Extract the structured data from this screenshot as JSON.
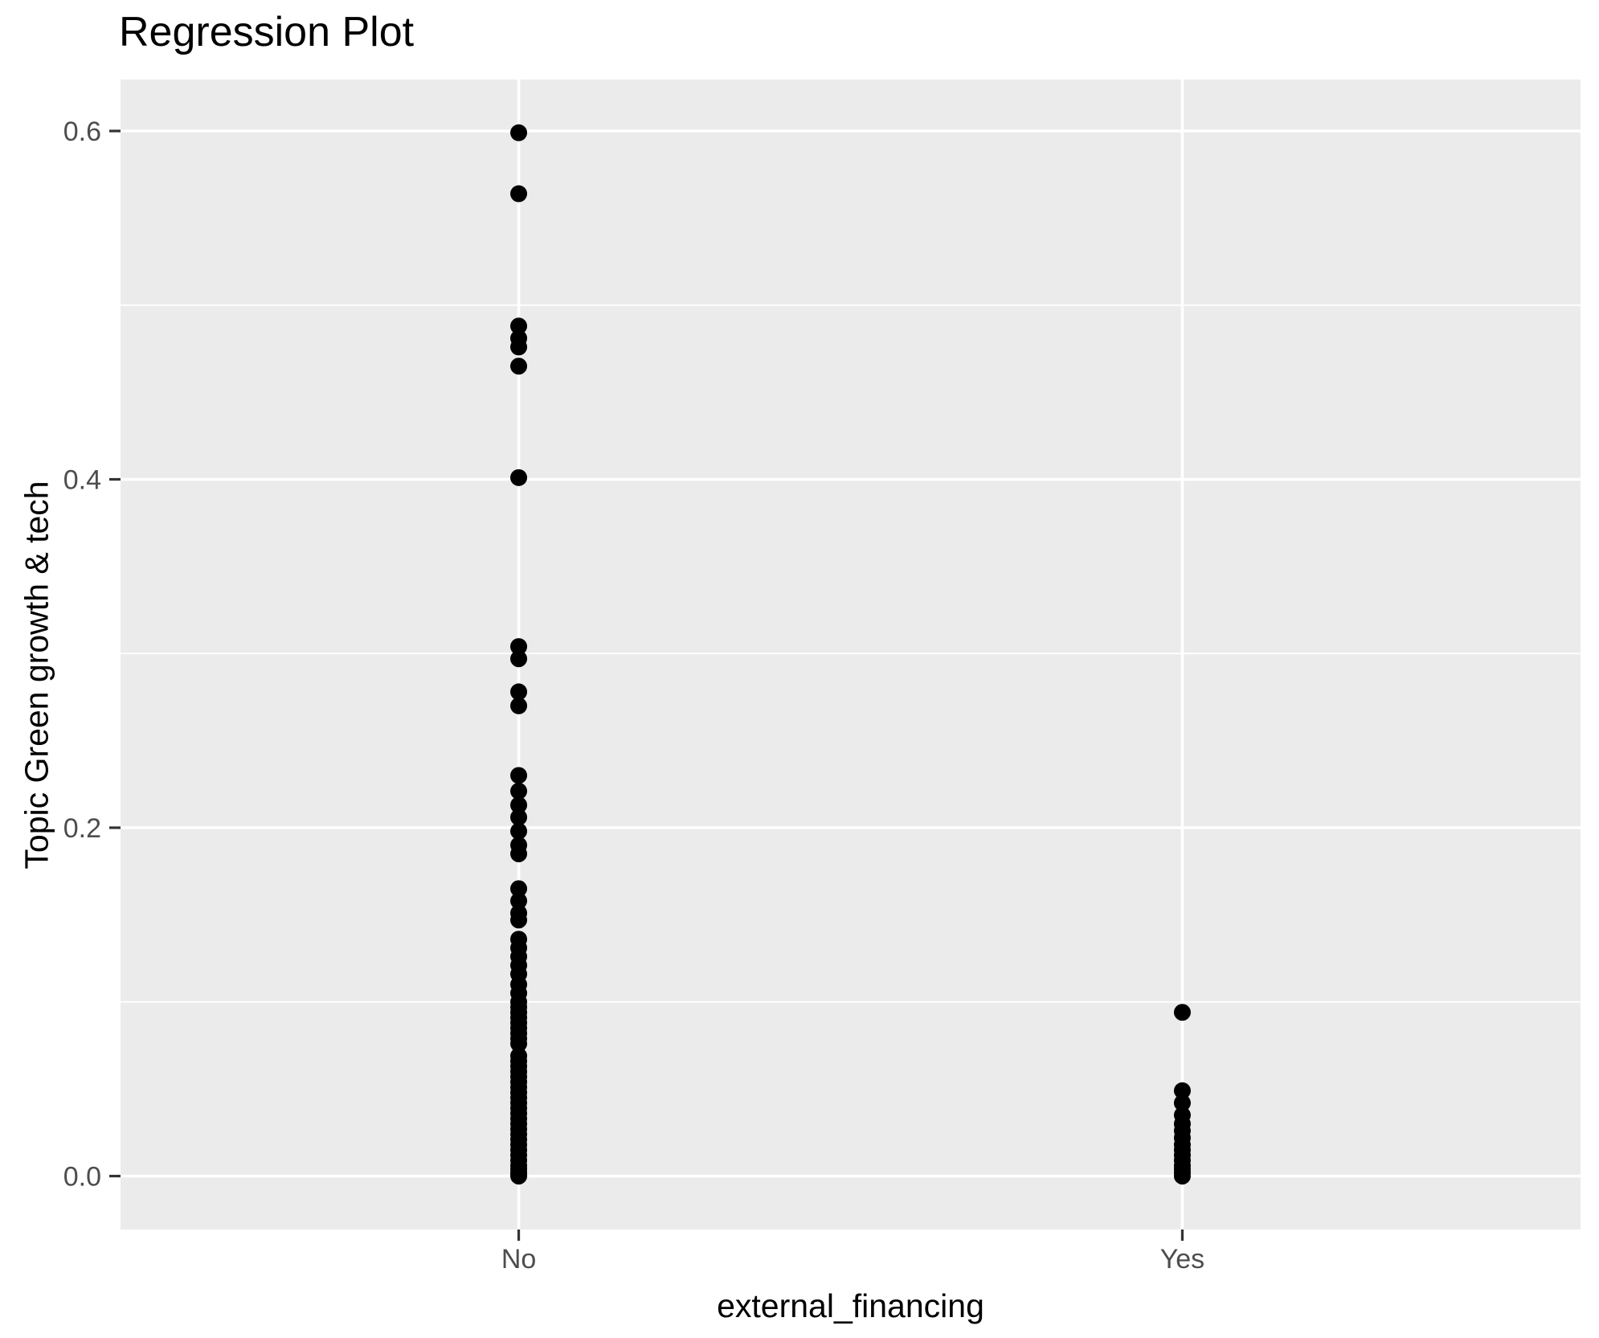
{
  "chart_data": {
    "type": "scatter",
    "title": "Regression Plot",
    "xlabel": "external_financing",
    "ylabel": "Topic Green growth & tech",
    "categories": [
      "No",
      "Yes"
    ],
    "y_tick_labels": [
      "0.0",
      "0.2",
      "0.4",
      "0.6"
    ],
    "y_ticks": [
      0.0,
      0.2,
      0.4,
      0.6
    ],
    "y_minor_ticks": [
      0.1,
      0.3,
      0.5
    ],
    "ylim": [
      -0.03,
      0.63
    ],
    "grid": "major-and-minor, white on gray panel",
    "legend_position": "none",
    "colors": {
      "panel_bg": "#EBEBEB",
      "gridline": "#FFFFFF",
      "point": "#000000",
      "tick_label": "#4D4D4D",
      "tick_mark": "#333333",
      "title_text": "#000000"
    },
    "series": [
      {
        "name": "No",
        "values": [
          0.599,
          0.564,
          0.488,
          0.481,
          0.476,
          0.465,
          0.401,
          0.304,
          0.297,
          0.278,
          0.27,
          0.23,
          0.221,
          0.213,
          0.206,
          0.198,
          0.19,
          0.185,
          0.165,
          0.158,
          0.151,
          0.147,
          0.136,
          0.131,
          0.126,
          0.121,
          0.116,
          0.11,
          0.105,
          0.1,
          0.097,
          0.094,
          0.091,
          0.088,
          0.085,
          0.082,
          0.079,
          0.076,
          0.069,
          0.066,
          0.063,
          0.06,
          0.057,
          0.054,
          0.051,
          0.048,
          0.045,
          0.042,
          0.039,
          0.036,
          0.033,
          0.03,
          0.027,
          0.024,
          0.021,
          0.018,
          0.015,
          0.012,
          0.009,
          0.006,
          0.004,
          0.002,
          0.001,
          0.0
        ]
      },
      {
        "name": "Yes",
        "values": [
          0.094,
          0.049,
          0.042,
          0.035,
          0.03,
          0.026,
          0.022,
          0.018,
          0.015,
          0.012,
          0.009,
          0.006,
          0.004,
          0.002,
          0.0
        ]
      }
    ]
  }
}
